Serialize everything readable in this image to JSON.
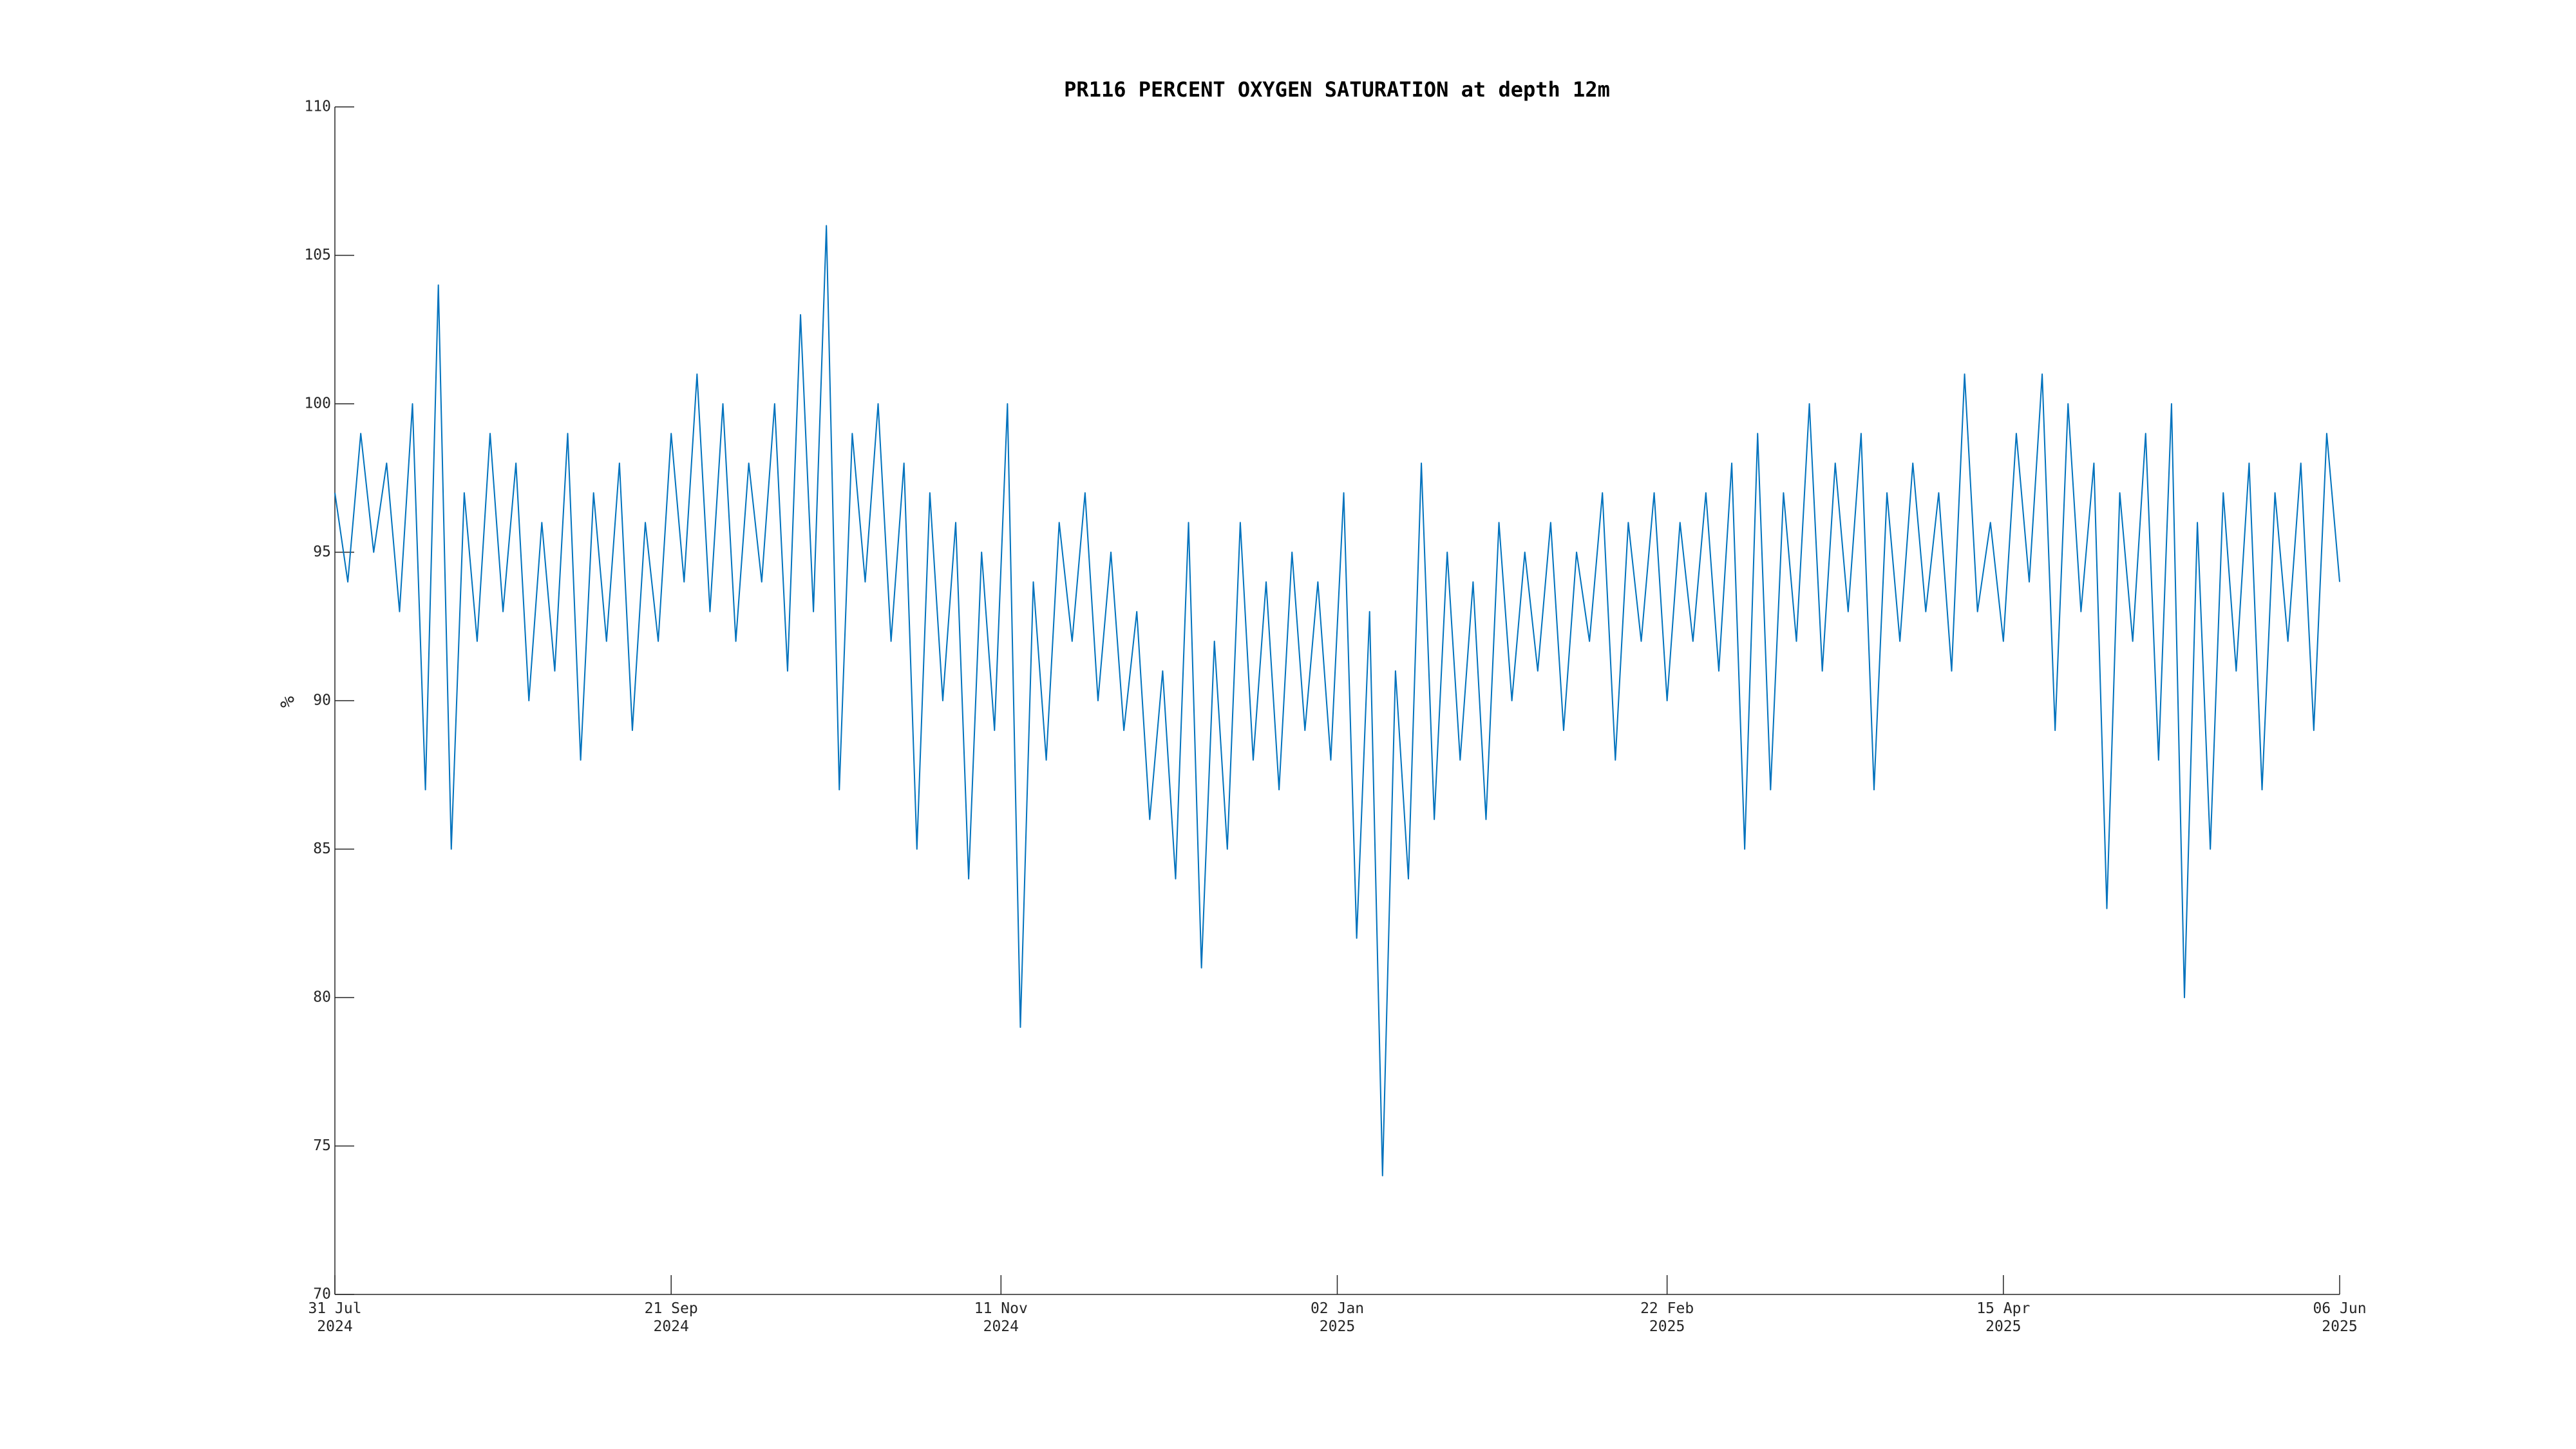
{
  "chart_data": {
    "type": "line",
    "title": "PR116 PERCENT OXYGEN SATURATION at depth 12m",
    "y_label": "%",
    "x": [
      "2024-07-31",
      "2024-08-02",
      "2024-08-04",
      "2024-08-06",
      "2024-08-08",
      "2024-08-10",
      "2024-08-12",
      "2024-08-14",
      "2024-08-16",
      "2024-08-18",
      "2024-08-20",
      "2024-08-22",
      "2024-08-24",
      "2024-08-26",
      "2024-08-28",
      "2024-08-30",
      "2024-09-01",
      "2024-09-03",
      "2024-09-05",
      "2024-09-07",
      "2024-09-09",
      "2024-09-11",
      "2024-09-13",
      "2024-09-15",
      "2024-09-17",
      "2024-09-19",
      "2024-09-21",
      "2024-09-23",
      "2024-09-25",
      "2024-09-27",
      "2024-09-29",
      "2024-10-01",
      "2024-10-03",
      "2024-10-05",
      "2024-10-07",
      "2024-10-09",
      "2024-10-11",
      "2024-10-13",
      "2024-10-15",
      "2024-10-17",
      "2024-10-19",
      "2024-10-21",
      "2024-10-23",
      "2024-10-25",
      "2024-10-27",
      "2024-10-29",
      "2024-10-31",
      "2024-11-02",
      "2024-11-04",
      "2024-11-06",
      "2024-11-08",
      "2024-11-10",
      "2024-11-12",
      "2024-11-14",
      "2024-11-16",
      "2024-11-18",
      "2024-11-20",
      "2024-11-22",
      "2024-11-24",
      "2024-11-26",
      "2024-11-28",
      "2024-11-30",
      "2024-12-02",
      "2024-12-04",
      "2024-12-06",
      "2024-12-08",
      "2024-12-10",
      "2024-12-12",
      "2024-12-14",
      "2024-12-16",
      "2024-12-18",
      "2024-12-20",
      "2024-12-22",
      "2024-12-24",
      "2024-12-26",
      "2024-12-28",
      "2024-12-30",
      "2025-01-01",
      "2025-01-03",
      "2025-01-05",
      "2025-01-07",
      "2025-01-09",
      "2025-01-11",
      "2025-01-13",
      "2025-01-15",
      "2025-01-17",
      "2025-01-19",
      "2025-01-21",
      "2025-01-23",
      "2025-01-25",
      "2025-01-27",
      "2025-01-29",
      "2025-01-31",
      "2025-02-02",
      "2025-02-04",
      "2025-02-06",
      "2025-02-08",
      "2025-02-10",
      "2025-02-12",
      "2025-02-14",
      "2025-02-16",
      "2025-02-18",
      "2025-02-20",
      "2025-02-22",
      "2025-02-24",
      "2025-02-26",
      "2025-02-28",
      "2025-03-02",
      "2025-03-04",
      "2025-03-06",
      "2025-03-08",
      "2025-03-10",
      "2025-03-12",
      "2025-03-14",
      "2025-03-16",
      "2025-03-18",
      "2025-03-20",
      "2025-03-22",
      "2025-03-24",
      "2025-03-26",
      "2025-03-28",
      "2025-03-30",
      "2025-04-01",
      "2025-04-03",
      "2025-04-05",
      "2025-04-07",
      "2025-04-09",
      "2025-04-11",
      "2025-04-13",
      "2025-04-15",
      "2025-04-17",
      "2025-04-19",
      "2025-04-21",
      "2025-04-23",
      "2025-04-25",
      "2025-04-27",
      "2025-04-29",
      "2025-05-01",
      "2025-05-03",
      "2025-05-05",
      "2025-05-07",
      "2025-05-09",
      "2025-05-11",
      "2025-05-13",
      "2025-05-15",
      "2025-05-17",
      "2025-05-19",
      "2025-05-21",
      "2025-05-23",
      "2025-05-25",
      "2025-05-27",
      "2025-05-29",
      "2025-05-31",
      "2025-06-02",
      "2025-06-04",
      "2025-06-06"
    ],
    "series": [
      {
        "name": "oxygen saturation",
        "color": "#0072bd",
        "values": [
          97,
          94,
          99,
          95,
          98,
          93,
          100,
          87,
          104,
          85,
          97,
          92,
          99,
          93,
          98,
          90,
          96,
          91,
          99,
          88,
          97,
          92,
          98,
          89,
          96,
          92,
          99,
          94,
          101,
          93,
          100,
          92,
          98,
          94,
          100,
          91,
          103,
          93,
          106,
          87,
          99,
          94,
          100,
          92,
          98,
          85,
          97,
          90,
          96,
          84,
          95,
          89,
          100,
          79,
          94,
          88,
          96,
          92,
          97,
          90,
          95,
          89,
          93,
          86,
          91,
          84,
          96,
          81,
          92,
          85,
          96,
          88,
          94,
          87,
          95,
          89,
          94,
          88,
          97,
          82,
          93,
          74,
          91,
          84,
          98,
          86,
          95,
          88,
          94,
          86,
          96,
          90,
          95,
          91,
          96,
          89,
          95,
          92,
          97,
          88,
          96,
          92,
          97,
          90,
          96,
          92,
          97,
          91,
          98,
          85,
          99,
          87,
          97,
          92,
          100,
          91,
          98,
          93,
          99,
          87,
          97,
          92,
          98,
          93,
          97,
          91,
          101,
          93,
          96,
          92,
          99,
          94,
          101,
          89,
          100,
          93,
          98,
          83,
          97,
          92,
          99,
          88,
          100,
          80,
          96,
          85,
          97,
          91,
          98,
          87,
          97,
          92,
          98,
          89,
          99,
          94
        ]
      }
    ],
    "xlim": [
      "2024-07-31",
      "2025-06-06"
    ],
    "xticks": [
      {
        "value": "2024-07-31",
        "label": "31 Jul\n2024"
      },
      {
        "value": "2024-09-21",
        "label": "21 Sep\n2024"
      },
      {
        "value": "2024-11-11",
        "label": "11 Nov\n2024"
      },
      {
        "value": "2025-01-02",
        "label": "02 Jan\n2025"
      },
      {
        "value": "2025-02-22",
        "label": "22 Feb\n2025"
      },
      {
        "value": "2025-04-15",
        "label": "15 Apr\n2025"
      },
      {
        "value": "2025-06-06",
        "label": "06 Jun\n2025"
      }
    ],
    "ylim": [
      70,
      110
    ],
    "yticks": [
      70,
      75,
      80,
      85,
      90,
      95,
      100,
      105,
      110
    ],
    "grid": false
  }
}
